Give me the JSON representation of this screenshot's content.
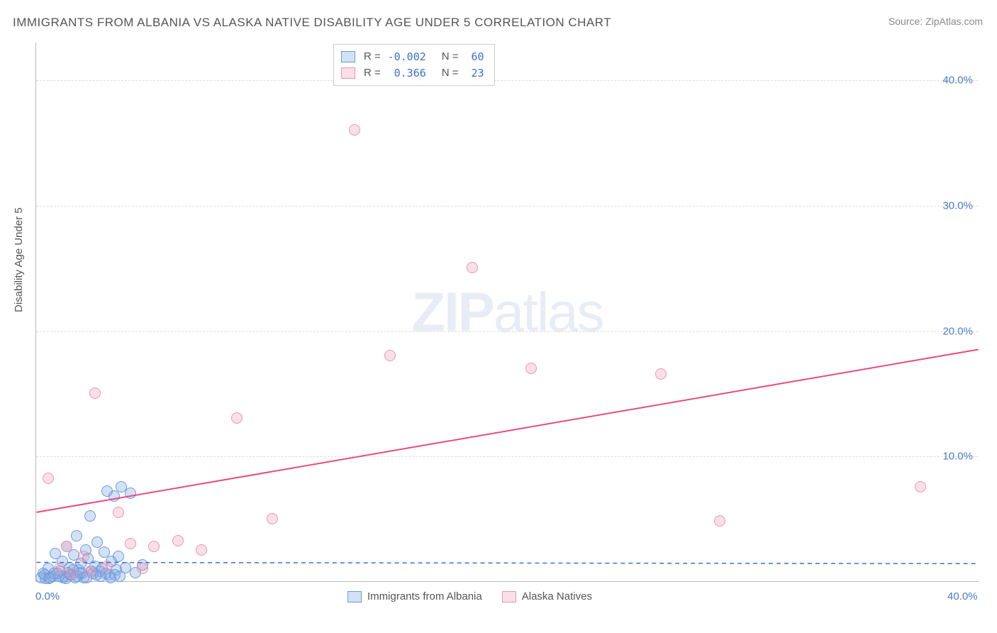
{
  "title": "IMMIGRANTS FROM ALBANIA VS ALASKA NATIVE DISABILITY AGE UNDER 5 CORRELATION CHART",
  "source": "Source: ZipAtlas.com",
  "ylabel": "Disability Age Under 5",
  "watermark_bold": "ZIP",
  "watermark_rest": "atlas",
  "chart": {
    "type": "scatter",
    "xlim": [
      0,
      40
    ],
    "ylim": [
      0,
      43
    ],
    "xticks": [
      {
        "v": 0,
        "label": "0.0%"
      },
      {
        "v": 40,
        "label": "40.0%"
      }
    ],
    "yticks": [
      {
        "v": 10,
        "label": "10.0%"
      },
      {
        "v": 20,
        "label": "20.0%"
      },
      {
        "v": 30,
        "label": "30.0%"
      },
      {
        "v": 40,
        "label": "40.0%"
      }
    ],
    "grid_color": "#dddddd",
    "axis_color": "#bbbbbb",
    "tick_label_color": "#4a7ac7",
    "background_color": "#ffffff",
    "marker_radius": 8,
    "series": [
      {
        "name": "Immigrants from Albania",
        "fill": "rgba(130,170,230,0.35)",
        "stroke": "#6d99d8",
        "R": "-0.002",
        "N": "60",
        "trend": {
          "x1": 0,
          "y1": 1.5,
          "x2": 40,
          "y2": 1.4,
          "color": "#3b6fd6",
          "dash": "6,5",
          "width": 1.5
        },
        "points": [
          [
            0.3,
            0.6
          ],
          [
            0.5,
            1.0
          ],
          [
            0.6,
            0.3
          ],
          [
            0.8,
            2.2
          ],
          [
            1.0,
            0.8
          ],
          [
            1.1,
            1.6
          ],
          [
            1.2,
            0.4
          ],
          [
            1.3,
            2.8
          ],
          [
            1.4,
            1.1
          ],
          [
            1.5,
            0.5
          ],
          [
            1.6,
            2.1
          ],
          [
            1.7,
            3.6
          ],
          [
            1.8,
            0.9
          ],
          [
            1.9,
            1.4
          ],
          [
            2.0,
            0.3
          ],
          [
            2.1,
            2.5
          ],
          [
            2.2,
            1.8
          ],
          [
            2.3,
            5.2
          ],
          [
            2.4,
            0.6
          ],
          [
            2.5,
            1.2
          ],
          [
            2.6,
            3.1
          ],
          [
            2.7,
            0.8
          ],
          [
            2.8,
            1.0
          ],
          [
            2.9,
            2.3
          ],
          [
            3.0,
            7.2
          ],
          [
            3.1,
            0.5
          ],
          [
            3.2,
            1.6
          ],
          [
            3.3,
            6.8
          ],
          [
            3.4,
            0.9
          ],
          [
            3.5,
            2.0
          ],
          [
            3.6,
            7.5
          ],
          [
            3.8,
            1.1
          ],
          [
            4.0,
            7.0
          ],
          [
            4.2,
            0.7
          ],
          [
            4.5,
            1.3
          ],
          [
            0.4,
            0.2
          ],
          [
            0.7,
            0.4
          ],
          [
            0.9,
            0.6
          ],
          [
            1.15,
            0.3
          ],
          [
            1.35,
            0.7
          ],
          [
            1.55,
            0.9
          ],
          [
            1.75,
            0.4
          ],
          [
            1.95,
            0.6
          ],
          [
            2.15,
            0.3
          ],
          [
            2.35,
            0.8
          ],
          [
            2.55,
            0.5
          ],
          [
            2.75,
            0.4
          ],
          [
            2.95,
            0.6
          ],
          [
            3.15,
            0.3
          ],
          [
            3.35,
            0.5
          ],
          [
            3.55,
            0.4
          ],
          [
            0.2,
            0.3
          ],
          [
            0.35,
            0.5
          ],
          [
            0.55,
            0.2
          ],
          [
            0.75,
            0.6
          ],
          [
            0.95,
            0.4
          ],
          [
            1.25,
            0.2
          ],
          [
            1.45,
            0.5
          ],
          [
            1.65,
            0.3
          ],
          [
            1.85,
            0.7
          ]
        ]
      },
      {
        "name": "Alaska Natives",
        "fill": "rgba(240,150,180,0.30)",
        "stroke": "#e597b4",
        "R": "0.366",
        "N": "23",
        "trend": {
          "x1": 0,
          "y1": 5.5,
          "x2": 40,
          "y2": 18.5,
          "color": "#e84a7f",
          "dash": "",
          "width": 2
        },
        "points": [
          [
            0.5,
            8.2
          ],
          [
            1.0,
            1.0
          ],
          [
            1.3,
            2.8
          ],
          [
            1.5,
            0.6
          ],
          [
            2.0,
            2.0
          ],
          [
            2.3,
            0.8
          ],
          [
            2.5,
            15.0
          ],
          [
            3.0,
            1.2
          ],
          [
            3.5,
            5.5
          ],
          [
            4.0,
            3.0
          ],
          [
            4.5,
            1.0
          ],
          [
            5.0,
            2.8
          ],
          [
            6.0,
            3.2
          ],
          [
            7.0,
            2.5
          ],
          [
            8.5,
            13.0
          ],
          [
            10.0,
            5.0
          ],
          [
            13.5,
            36.0
          ],
          [
            15.0,
            18.0
          ],
          [
            18.5,
            25.0
          ],
          [
            21.0,
            17.0
          ],
          [
            26.5,
            16.5
          ],
          [
            29.0,
            4.8
          ],
          [
            37.5,
            7.5
          ]
        ]
      }
    ],
    "legend_top": {
      "rows": [
        {
          "series_idx": 0
        },
        {
          "series_idx": 1
        }
      ]
    },
    "legend_bottom": [
      {
        "series_idx": 0
      },
      {
        "series_idx": 1
      }
    ]
  }
}
